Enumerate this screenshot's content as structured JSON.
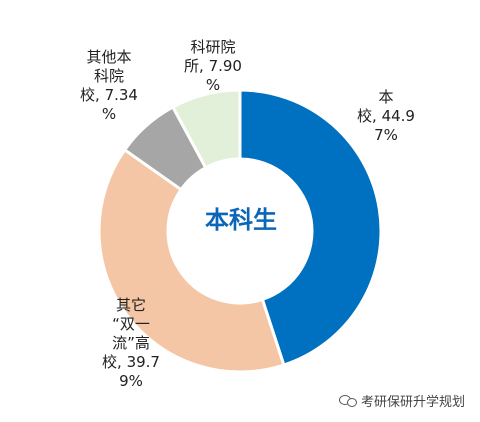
{
  "chart_data": {
    "type": "pie",
    "donut": true,
    "center_label": "本科生",
    "slices": [
      {
        "label_lines": [
          "本",
          "校, 44.9",
          "7%"
        ],
        "value": 44.97,
        "color": "#0070C0"
      },
      {
        "label_lines": [
          "其它",
          "“双一",
          "流”高",
          "校, 39.7",
          "9%"
        ],
        "value": 39.79,
        "color": "#F4C6A6"
      },
      {
        "label_lines": [
          "其他本",
          "科院",
          "校, 7.34",
          "%"
        ],
        "value": 7.34,
        "color": "#A6A6A6"
      },
      {
        "label_lines": [
          "科研院",
          "所, 7.90",
          "%"
        ],
        "value": 7.9,
        "color": "#E2F0D9"
      }
    ]
  },
  "watermark": {
    "text": "考研保研升学规划",
    "icon": "wechat-icon"
  }
}
